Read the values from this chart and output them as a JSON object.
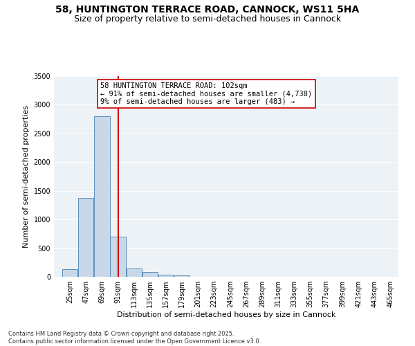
{
  "title": "58, HUNTINGTON TERRACE ROAD, CANNOCK, WS11 5HA",
  "subtitle": "Size of property relative to semi-detached houses in Cannock",
  "xlabel": "Distribution of semi-detached houses by size in Cannock",
  "ylabel": "Number of semi-detached properties",
  "bin_labels": [
    "25sqm",
    "47sqm",
    "69sqm",
    "91sqm",
    "113sqm",
    "135sqm",
    "157sqm",
    "179sqm",
    "201sqm",
    "223sqm",
    "245sqm",
    "267sqm",
    "289sqm",
    "311sqm",
    "333sqm",
    "355sqm",
    "377sqm",
    "399sqm",
    "421sqm",
    "443sqm",
    "465sqm"
  ],
  "bin_edges": [
    25,
    47,
    69,
    91,
    113,
    135,
    157,
    179,
    201,
    223,
    245,
    267,
    289,
    311,
    333,
    355,
    377,
    399,
    421,
    443,
    465
  ],
  "bin_width": 22,
  "bar_values": [
    130,
    1370,
    2800,
    700,
    150,
    80,
    40,
    30,
    0,
    0,
    0,
    0,
    0,
    0,
    0,
    0,
    0,
    0,
    0,
    0
  ],
  "bar_color": "#c8d8e8",
  "bar_edge_color": "#5b8db8",
  "property_value": 102,
  "vline_color": "#cc0000",
  "annotation_line1": "58 HUNTINGTON TERRACE ROAD: 102sqm",
  "annotation_line2": "← 91% of semi-detached houses are smaller (4,738)",
  "annotation_line3": "9% of semi-detached houses are larger (483) →",
  "annotation_box_color": "#ffffff",
  "annotation_box_edge": "#cc0000",
  "ylim": [
    0,
    3500
  ],
  "xlim_left": 14,
  "xlim_right": 487,
  "background_color": "#edf2f7",
  "footer_line1": "Contains HM Land Registry data © Crown copyright and database right 2025.",
  "footer_line2": "Contains public sector information licensed under the Open Government Licence v3.0.",
  "title_fontsize": 10,
  "subtitle_fontsize": 9,
  "ylabel_fontsize": 8,
  "xlabel_fontsize": 8,
  "tick_fontsize": 7,
  "footer_fontsize": 6,
  "annotation_fontsize": 7.5
}
